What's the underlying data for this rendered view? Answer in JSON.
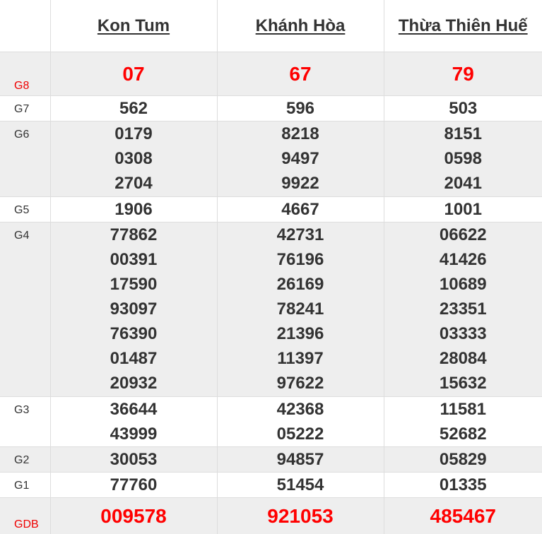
{
  "provinces": [
    "Kon Tum",
    "Khánh Hòa",
    "Thừa Thiên Huế"
  ],
  "colors": {
    "highlight": "#ff0000",
    "text": "#333333",
    "stripe": "#eeeeee"
  },
  "prizes": [
    {
      "label": "G8",
      "highlight": true,
      "values": [
        [
          "07"
        ],
        [
          "67"
        ],
        [
          "79"
        ]
      ]
    },
    {
      "label": "G7",
      "highlight": false,
      "values": [
        [
          "562"
        ],
        [
          "596"
        ],
        [
          "503"
        ]
      ]
    },
    {
      "label": "G6",
      "highlight": false,
      "values": [
        [
          "0179",
          "0308",
          "2704"
        ],
        [
          "8218",
          "9497",
          "9922"
        ],
        [
          "8151",
          "0598",
          "2041"
        ]
      ]
    },
    {
      "label": "G5",
      "highlight": false,
      "values": [
        [
          "1906"
        ],
        [
          "4667"
        ],
        [
          "1001"
        ]
      ]
    },
    {
      "label": "G4",
      "highlight": false,
      "values": [
        [
          "77862",
          "00391",
          "17590",
          "93097",
          "76390",
          "01487",
          "20932"
        ],
        [
          "42731",
          "76196",
          "26169",
          "78241",
          "21396",
          "11397",
          "97622"
        ],
        [
          "06622",
          "41426",
          "10689",
          "23351",
          "03333",
          "28084",
          "15632"
        ]
      ]
    },
    {
      "label": "G3",
      "highlight": false,
      "values": [
        [
          "36644",
          "43999"
        ],
        [
          "42368",
          "05222"
        ],
        [
          "11581",
          "52682"
        ]
      ]
    },
    {
      "label": "G2",
      "highlight": false,
      "values": [
        [
          "30053"
        ],
        [
          "94857"
        ],
        [
          "05829"
        ]
      ]
    },
    {
      "label": "G1",
      "highlight": false,
      "values": [
        [
          "77760"
        ],
        [
          "51454"
        ],
        [
          "01335"
        ]
      ]
    },
    {
      "label": "GDB",
      "highlight": true,
      "values": [
        [
          "009578"
        ],
        [
          "921053"
        ],
        [
          "485467"
        ]
      ]
    }
  ]
}
